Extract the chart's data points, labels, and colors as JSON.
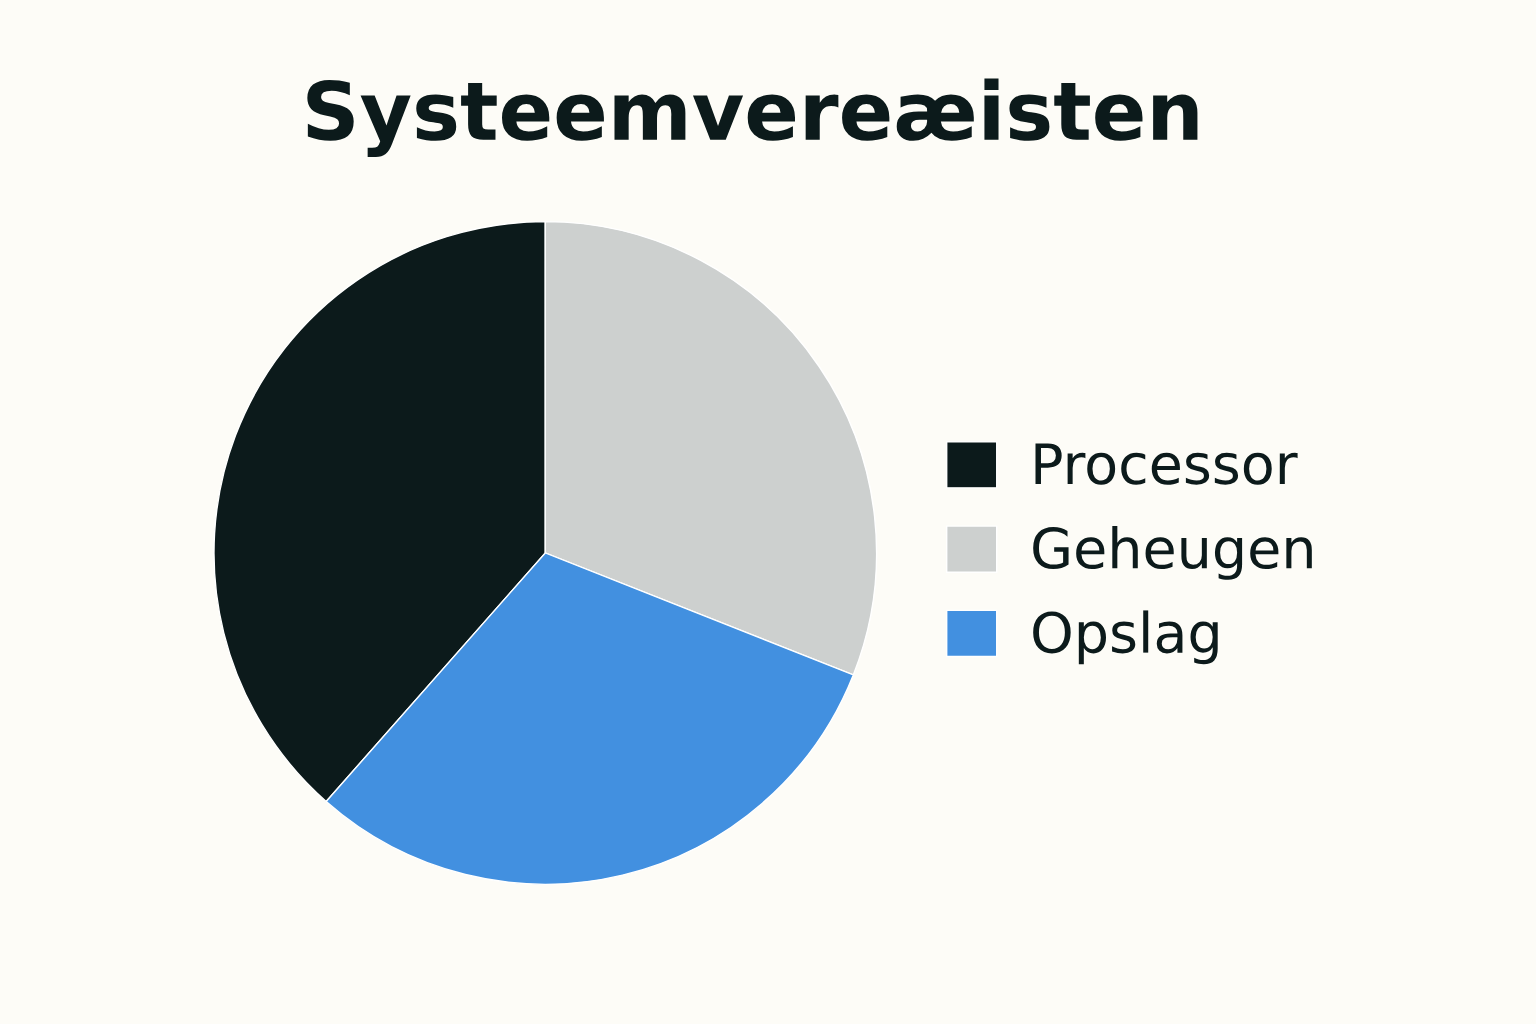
{
  "chart_data": {
    "type": "pie",
    "title": "Systeemvereæisten",
    "categories": [
      "Processor",
      "Geheugen",
      "Opslag"
    ],
    "values": [
      38.5,
      31.0,
      30.5
    ],
    "colors": [
      "#0c1a1b",
      "#cdd0cf",
      "#4290e0"
    ],
    "legend": "right"
  }
}
